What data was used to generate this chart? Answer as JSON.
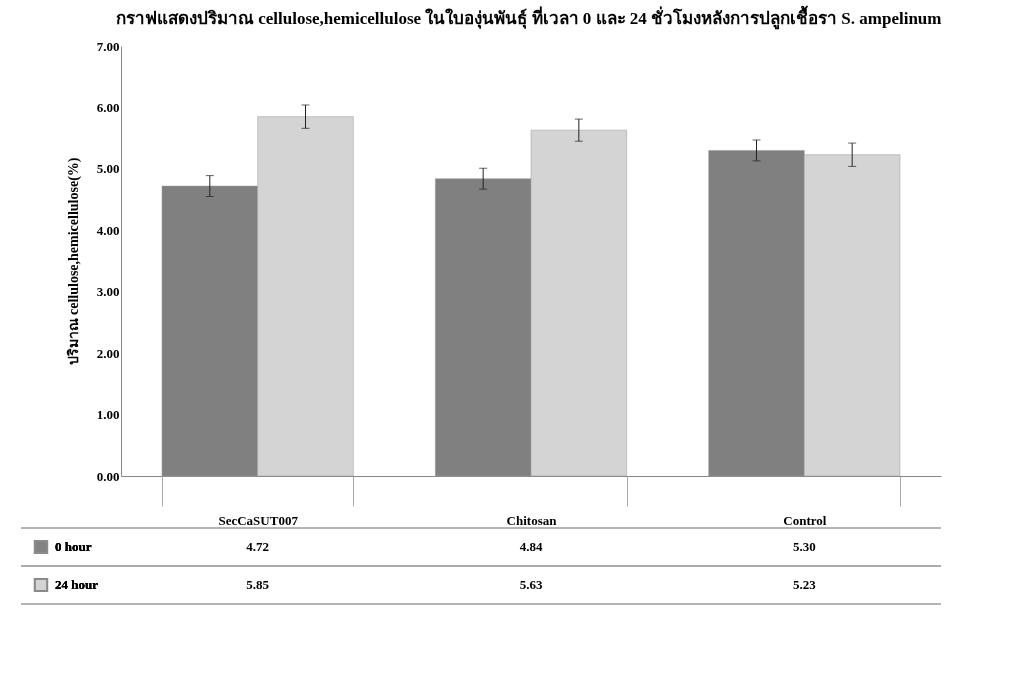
{
  "chart_data": {
    "type": "bar",
    "title": "กราฟแสดงปริมาณ cellulose,hemicellulose ในใบองุ่นพันธุ์ ที่เวลา 0 และ 24 ชั่วโมงหลังการปลูกเชื้อรา S. ampelinum",
    "ylabel": "ปริมาณ cellulose,hemicellulose(%)",
    "categories": [
      "SecCaSUT007",
      "Chitosan",
      "Control"
    ],
    "series": [
      {
        "name": "0 hour",
        "color": "#808080",
        "values": [
          4.72,
          4.84,
          5.3
        ],
        "value_labels": [
          "4.72",
          "4.84",
          "5.30"
        ],
        "errors": [
          0.17,
          0.17,
          0.17
        ]
      },
      {
        "name": "24 hour",
        "color": "#d4d4d4",
        "values": [
          5.85,
          5.63,
          5.23
        ],
        "value_labels": [
          "5.85",
          "5.63",
          "5.23"
        ],
        "errors": [
          0.19,
          0.18,
          0.19
        ]
      }
    ],
    "ylim": [
      0,
      7
    ],
    "yticks": [
      {
        "value": 0,
        "label": "0.00"
      },
      {
        "value": 1,
        "label": "1.00"
      },
      {
        "value": 2,
        "label": "2.00"
      },
      {
        "value": 3,
        "label": "3.00"
      },
      {
        "value": 4,
        "label": "4.00"
      },
      {
        "value": 5,
        "label": "5.00"
      },
      {
        "value": 6,
        "label": "6.00"
      },
      {
        "value": 7,
        "label": "7.00"
      }
    ],
    "grid": false,
    "legend": "bottom left"
  }
}
